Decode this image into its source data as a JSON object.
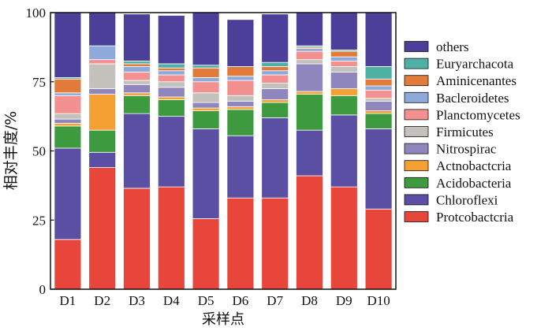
{
  "chart_data": {
    "type": "bar",
    "stacked": true,
    "xlabel": "采样点",
    "ylabel": "相对丰度/%",
    "ylim": [
      0,
      100
    ],
    "yticks": [
      0,
      25,
      50,
      75,
      100
    ],
    "legend_position": "right",
    "categories": [
      "D1",
      "D2",
      "D3",
      "D4",
      "D5",
      "D6",
      "D7",
      "D8",
      "D9",
      "D10"
    ],
    "series": [
      {
        "name": "Protcobactcria",
        "color": "#e8463a",
        "values": [
          18,
          44,
          36.5,
          37,
          25.5,
          33,
          33,
          41,
          37,
          29
        ]
      },
      {
        "name": "Chloroflexi",
        "color": "#5a4fa2",
        "values": [
          33,
          5.5,
          27,
          25.5,
          32.5,
          22.5,
          29,
          16.5,
          26,
          29
        ]
      },
      {
        "name": "Acidobacteria",
        "color": "#3e9a3e",
        "values": [
          8,
          8,
          6.5,
          6,
          6.5,
          9.5,
          5.5,
          13,
          7,
          5.5
        ]
      },
      {
        "name": "Actnobactcria",
        "color": "#f5a032",
        "values": [
          1,
          13,
          1,
          1,
          1,
          1,
          1,
          1,
          2.5,
          1
        ]
      },
      {
        "name": "Nitrospirac",
        "color": "#8f86bd",
        "values": [
          1.5,
          2,
          3,
          3.5,
          2,
          2,
          4,
          10,
          6,
          3.5
        ]
      },
      {
        "name": "Firmicutes",
        "color": "#c3c1bb",
        "values": [
          2,
          9,
          1.5,
          2,
          3.5,
          2,
          2,
          1.5,
          2,
          1
        ]
      },
      {
        "name": "Planctomycetes",
        "color": "#f39191",
        "values": [
          6.5,
          1.5,
          3,
          2.5,
          4,
          5.5,
          3,
          3,
          2,
          3
        ]
      },
      {
        "name": "Bacleroidetes",
        "color": "#8eaadb",
        "values": [
          1,
          5,
          2,
          1.5,
          1.5,
          1.5,
          1.5,
          1,
          1.5,
          1.5
        ]
      },
      {
        "name": "Aminicenantes",
        "color": "#e27b3a",
        "values": [
          5,
          0,
          1,
          1,
          3.5,
          3.5,
          1.5,
          0.5,
          2,
          2.5
        ]
      },
      {
        "name": "Euryarchacota",
        "color": "#4fb0a6",
        "values": [
          0.5,
          0,
          1,
          1.5,
          1,
          0,
          1.5,
          0.5,
          0.5,
          4.5
        ]
      },
      {
        "name": "others",
        "color": "#4b3f9a",
        "values": [
          23.5,
          12,
          17,
          17.5,
          19,
          17,
          17.5,
          12,
          13.5,
          19.5
        ]
      }
    ]
  }
}
